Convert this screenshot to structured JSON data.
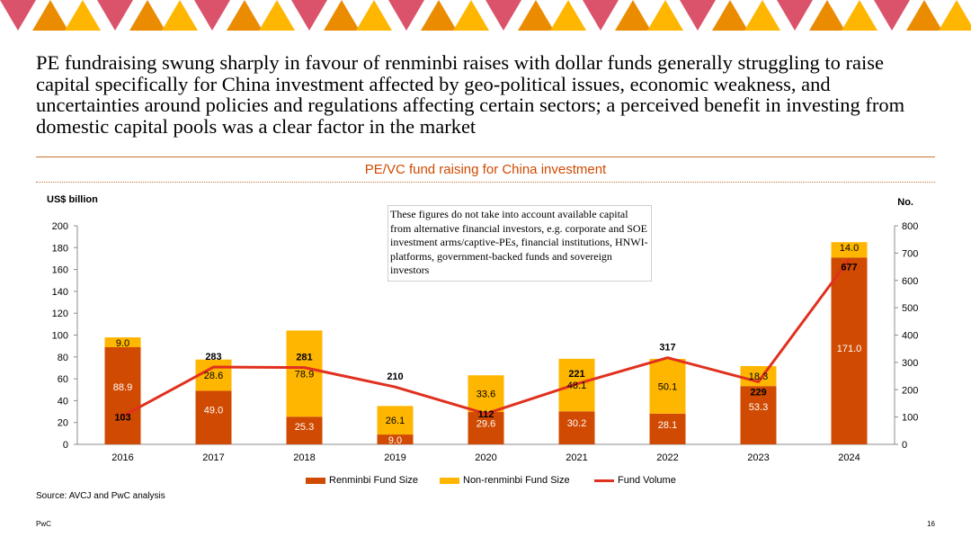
{
  "title": "PE fundraising swung sharply in favour of renminbi raises with dollar funds generally struggling to raise capital specifically for China investment affected by geo-political issues, economic weakness, and uncertainties around policies and regulations affecting certain sectors; a perceived benefit in investing from domestic capital pools was a clear factor in the market",
  "note": "These figures do not take into account available capital from alternative financial investors, e.g. corporate and SOE investment arms/captive-PEs, financial institutions, HNWI-platforms, government-backed funds and sovereign investors",
  "source": "Source: AVCJ and PwC analysis",
  "footer": {
    "left": "PwC",
    "right": "16"
  },
  "colors": {
    "accent": "#d04a02",
    "renminbi": "#d04a02",
    "non_renminbi": "#ffb600",
    "line": "#e0301e",
    "pink": "#db536a",
    "banner_orange": "#eb8c00"
  },
  "chart_data": {
    "type": "bar",
    "stacked": true,
    "title": "PE/VC fund raising for China investment",
    "categories": [
      "2016",
      "2017",
      "2018",
      "2019",
      "2020",
      "2021",
      "2022",
      "2023",
      "2024"
    ],
    "series": [
      {
        "name": "Renminbi Fund Size",
        "type": "bar",
        "axis": "left",
        "color": "#d04a02",
        "values": [
          88.9,
          49.0,
          25.3,
          9.0,
          29.6,
          30.2,
          28.1,
          53.3,
          171.0
        ]
      },
      {
        "name": "Non-renminbi Fund Size",
        "type": "bar",
        "axis": "left",
        "color": "#ffb600",
        "values": [
          9.0,
          28.6,
          78.9,
          26.1,
          33.6,
          48.1,
          50.1,
          18.3,
          14.0
        ]
      },
      {
        "name": "Fund Volume",
        "type": "line",
        "axis": "right",
        "color": "#e0301e",
        "values": [
          103,
          283,
          281,
          210,
          112,
          221,
          317,
          229,
          677
        ]
      }
    ],
    "y_left": {
      "label": "US$ billion",
      "min": 0,
      "max": 200,
      "ticks": [
        0,
        20,
        40,
        60,
        80,
        100,
        120,
        140,
        160,
        180,
        200
      ]
    },
    "y_right": {
      "label": "No.",
      "min": 0,
      "max": 800,
      "ticks": [
        0,
        100,
        200,
        300,
        400,
        500,
        600,
        700,
        800
      ]
    },
    "grid": false,
    "legend_position": "bottom"
  }
}
